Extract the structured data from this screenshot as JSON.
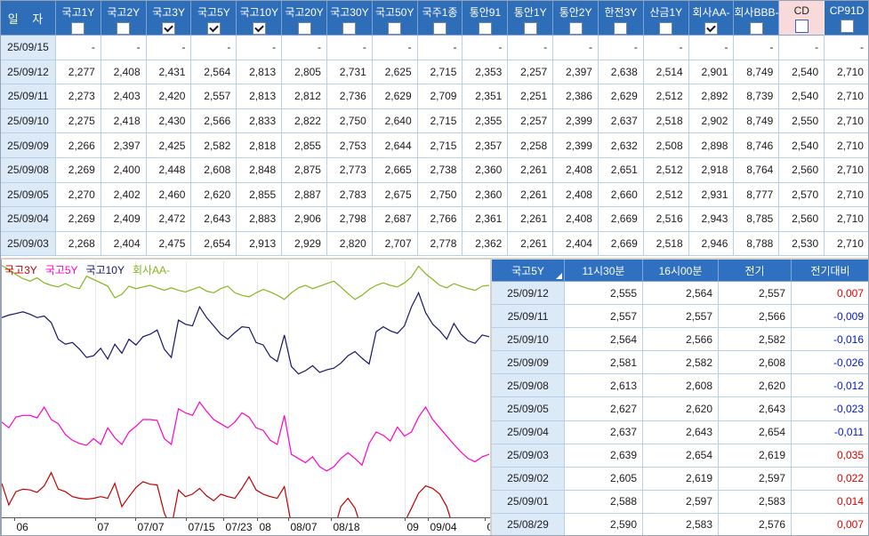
{
  "top_table": {
    "date_header": "일  자",
    "columns": [
      {
        "label": "국고1Y",
        "checked": false,
        "highlighted": false
      },
      {
        "label": "국고2Y",
        "checked": false,
        "highlighted": false
      },
      {
        "label": "국고3Y",
        "checked": true,
        "highlighted": false
      },
      {
        "label": "국고5Y",
        "checked": true,
        "highlighted": false
      },
      {
        "label": "국고10Y",
        "checked": true,
        "highlighted": false
      },
      {
        "label": "국고20Y",
        "checked": false,
        "highlighted": false
      },
      {
        "label": "국고30Y",
        "checked": false,
        "highlighted": false
      },
      {
        "label": "국고50Y",
        "checked": false,
        "highlighted": false
      },
      {
        "label": "국주1종",
        "checked": false,
        "highlighted": false
      },
      {
        "label": "통안91",
        "checked": false,
        "highlighted": false
      },
      {
        "label": "통안1Y",
        "checked": false,
        "highlighted": false
      },
      {
        "label": "통안2Y",
        "checked": false,
        "highlighted": false
      },
      {
        "label": "한전3Y",
        "checked": false,
        "highlighted": false
      },
      {
        "label": "산금1Y",
        "checked": false,
        "highlighted": false
      },
      {
        "label": "회사AA-",
        "checked": true,
        "highlighted": false
      },
      {
        "label": "회사BBB-",
        "checked": false,
        "highlighted": false
      },
      {
        "label": "CD",
        "checked": false,
        "highlighted": true
      },
      {
        "label": "CP91D",
        "checked": false,
        "highlighted": false
      }
    ],
    "rows": [
      {
        "date": "25/09/15",
        "values": [
          "-",
          "-",
          "-",
          "-",
          "-",
          "-",
          "-",
          "-",
          "-",
          "-",
          "-",
          "-",
          "-",
          "-",
          "-",
          "-",
          "-",
          "-"
        ]
      },
      {
        "date": "25/09/12",
        "values": [
          "2,277",
          "2,408",
          "2,431",
          "2,564",
          "2,813",
          "2,805",
          "2,731",
          "2,625",
          "2,715",
          "2,353",
          "2,257",
          "2,397",
          "2,638",
          "2,514",
          "2,901",
          "8,749",
          "2,540",
          "2,710"
        ]
      },
      {
        "date": "25/09/11",
        "values": [
          "2,273",
          "2,403",
          "2,420",
          "2,557",
          "2,813",
          "2,812",
          "2,736",
          "2,629",
          "2,709",
          "2,351",
          "2,251",
          "2,386",
          "2,629",
          "2,512",
          "2,892",
          "8,739",
          "2,540",
          "2,710"
        ]
      },
      {
        "date": "25/09/10",
        "values": [
          "2,275",
          "2,418",
          "2,430",
          "2,566",
          "2,833",
          "2,822",
          "2,750",
          "2,640",
          "2,715",
          "2,355",
          "2,257",
          "2,399",
          "2,637",
          "2,518",
          "2,902",
          "8,749",
          "2,550",
          "2,710"
        ]
      },
      {
        "date": "25/09/09",
        "values": [
          "2,266",
          "2,397",
          "2,425",
          "2,582",
          "2,818",
          "2,855",
          "2,753",
          "2,644",
          "2,715",
          "2,357",
          "2,258",
          "2,399",
          "2,632",
          "2,508",
          "2,898",
          "8,746",
          "2,540",
          "2,710"
        ]
      },
      {
        "date": "25/09/08",
        "values": [
          "2,269",
          "2,400",
          "2,448",
          "2,608",
          "2,848",
          "2,875",
          "2,773",
          "2,665",
          "2,738",
          "2,360",
          "2,261",
          "2,408",
          "2,651",
          "2,512",
          "2,918",
          "8,764",
          "2,560",
          "2,710"
        ]
      },
      {
        "date": "25/09/05",
        "values": [
          "2,270",
          "2,402",
          "2,460",
          "2,620",
          "2,855",
          "2,887",
          "2,783",
          "2,675",
          "2,750",
          "2,360",
          "2,261",
          "2,408",
          "2,660",
          "2,512",
          "2,931",
          "8,777",
          "2,570",
          "2,710"
        ]
      },
      {
        "date": "25/09/04",
        "values": [
          "2,269",
          "2,409",
          "2,472",
          "2,643",
          "2,883",
          "2,906",
          "2,798",
          "2,687",
          "2,766",
          "2,361",
          "2,261",
          "2,408",
          "2,669",
          "2,516",
          "2,943",
          "8,785",
          "2,560",
          "2,710"
        ]
      },
      {
        "date": "25/09/03",
        "values": [
          "2,268",
          "2,404",
          "2,475",
          "2,654",
          "2,913",
          "2,929",
          "2,820",
          "2,707",
          "2,778",
          "2,362",
          "2,261",
          "2,404",
          "2,669",
          "2,518",
          "2,946",
          "8,788",
          "2,530",
          "2,710"
        ]
      }
    ]
  },
  "chart": {
    "chart_data": {
      "type": "line",
      "legend_position": "top-left",
      "x_ticks": [
        {
          "label": "06",
          "f": 0.026
        },
        {
          "label": "07",
          "f": 0.192
        },
        {
          "label": "07/07",
          "f": 0.274
        },
        {
          "label": "07/15",
          "f": 0.378
        },
        {
          "label": "07/23",
          "f": 0.454
        },
        {
          "label": "08",
          "f": 0.524
        },
        {
          "label": "08/07",
          "f": 0.588
        },
        {
          "label": "08/18",
          "f": 0.675
        },
        {
          "label": "09",
          "f": 0.827
        },
        {
          "label": "09/04",
          "f": 0.874
        },
        {
          "label": "0",
          "f": 0.991
        }
      ],
      "ylim": [
        2.37,
        2.99
      ],
      "series": [
        {
          "name": "국고3Y",
          "color": "#c00000",
          "values": [
            2.452,
            2.4,
            2.432,
            2.438,
            2.436,
            2.43,
            2.446,
            2.478,
            2.438,
            2.432,
            2.42,
            2.416,
            2.414,
            2.416,
            2.42,
            2.416,
            2.452,
            2.396,
            2.42,
            2.442,
            2.456,
            2.45,
            2.448,
            2.38,
            2.345,
            2.436,
            2.42,
            2.426,
            2.44,
            2.422,
            2.41,
            2.426,
            2.42,
            2.416,
            2.44,
            2.468,
            2.436,
            2.426,
            2.42,
            2.416,
            2.444,
            2.352,
            2.33,
            2.332,
            2.336,
            2.33,
            2.332,
            2.336,
            2.396,
            2.416,
            2.392,
            2.34,
            2.33,
            2.332,
            2.33,
            2.334,
            2.33,
            2.358,
            2.392,
            2.428,
            2.446,
            2.44,
            2.426,
            2.396,
            2.34,
            2.33,
            2.332,
            2.33,
            2.332,
            2.33
          ]
        },
        {
          "name": "국고5Y",
          "color": "#ff00cc",
          "values": [
            2.6,
            2.586,
            2.612,
            2.616,
            2.616,
            2.61,
            2.636,
            2.606,
            2.596,
            2.57,
            2.556,
            2.548,
            2.544,
            2.56,
            2.546,
            2.586,
            2.562,
            2.546,
            2.576,
            2.59,
            2.606,
            2.606,
            2.604,
            2.56,
            2.546,
            2.632,
            2.622,
            2.616,
            2.648,
            2.626,
            2.606,
            2.596,
            2.586,
            2.6,
            2.622,
            2.612,
            2.586,
            2.58,
            2.556,
            2.546,
            2.616,
            2.522,
            2.512,
            2.502,
            2.516,
            2.492,
            2.482,
            2.492,
            2.512,
            2.526,
            2.512,
            2.496,
            2.548,
            2.576,
            2.568,
            2.554,
            2.588,
            2.566,
            2.576,
            2.612,
            2.636,
            2.606,
            2.586,
            2.566,
            2.546,
            2.528,
            2.512,
            2.504,
            2.516,
            2.522
          ]
        },
        {
          "name": "국고10Y",
          "color": "#16166b",
          "values": [
            2.852,
            2.858,
            2.862,
            2.866,
            2.86,
            2.852,
            2.856,
            2.84,
            2.8,
            2.788,
            2.792,
            2.776,
            2.756,
            2.76,
            2.778,
            2.752,
            2.788,
            2.766,
            2.8,
            2.786,
            2.806,
            2.812,
            2.822,
            2.776,
            2.756,
            2.846,
            2.836,
            2.832,
            2.878,
            2.852,
            2.832,
            2.812,
            2.8,
            2.816,
            2.83,
            2.828,
            2.792,
            2.786,
            2.758,
            2.746,
            2.81,
            2.734,
            2.716,
            2.724,
            2.736,
            2.72,
            2.726,
            2.73,
            2.742,
            2.76,
            2.77,
            2.754,
            2.74,
            2.818,
            2.83,
            2.82,
            2.814,
            2.832,
            2.878,
            2.912,
            2.864,
            2.836,
            2.82,
            2.8,
            2.838,
            2.812,
            2.796,
            2.79,
            2.81,
            2.806
          ]
        },
        {
          "name": "회사AA-",
          "color": "#84b71f",
          "values": [
            2.978,
            2.968,
            2.956,
            2.946,
            2.94,
            2.948,
            2.936,
            2.93,
            2.926,
            2.934,
            2.926,
            2.922,
            2.952,
            2.944,
            2.936,
            2.928,
            2.9,
            2.908,
            2.928,
            2.922,
            2.926,
            2.93,
            2.924,
            2.918,
            2.924,
            2.918,
            2.914,
            2.92,
            2.926,
            2.916,
            2.912,
            2.922,
            2.928,
            2.912,
            2.906,
            2.902,
            2.912,
            2.92,
            2.914,
            2.906,
            2.896,
            2.912,
            2.924,
            2.93,
            2.922,
            2.928,
            2.934,
            2.94,
            2.926,
            2.91,
            2.896,
            2.906,
            2.92,
            2.93,
            2.936,
            2.93,
            2.926,
            2.936,
            2.95,
            2.976,
            2.958,
            2.944,
            2.93,
            2.924,
            2.934,
            2.928,
            2.922,
            2.918,
            2.928,
            2.93
          ]
        }
      ],
      "legend": [
        {
          "label": "국고3Y",
          "color": "#c00000"
        },
        {
          "label": "국고5Y",
          "color": "#ff00cc"
        },
        {
          "label": "국고10Y",
          "color": "#16166b"
        },
        {
          "label": "회사AA-",
          "color": "#84b71f"
        }
      ]
    }
  },
  "quote_table": {
    "selected_series": "국고5Y",
    "columns": [
      "11시30분",
      "16시00분",
      "전기",
      "전기대비"
    ],
    "rows": [
      {
        "date": "25/09/12",
        "t1130": "2,555",
        "t1600": "2,564",
        "prev": "2,557",
        "change": "0,007",
        "direction": "up"
      },
      {
        "date": "25/09/11",
        "t1130": "2,557",
        "t1600": "2,557",
        "prev": "2,566",
        "change": "-0,009",
        "direction": "down"
      },
      {
        "date": "25/09/10",
        "t1130": "2,564",
        "t1600": "2,566",
        "prev": "2,582",
        "change": "-0,016",
        "direction": "down"
      },
      {
        "date": "25/09/09",
        "t1130": "2,581",
        "t1600": "2,582",
        "prev": "2,608",
        "change": "-0,026",
        "direction": "down"
      },
      {
        "date": "25/09/08",
        "t1130": "2,613",
        "t1600": "2,608",
        "prev": "2,620",
        "change": "-0,012",
        "direction": "down"
      },
      {
        "date": "25/09/05",
        "t1130": "2,627",
        "t1600": "2,620",
        "prev": "2,643",
        "change": "-0,023",
        "direction": "down"
      },
      {
        "date": "25/09/04",
        "t1130": "2,637",
        "t1600": "2,643",
        "prev": "2,654",
        "change": "-0,011",
        "direction": "down"
      },
      {
        "date": "25/09/03",
        "t1130": "2,639",
        "t1600": "2,654",
        "prev": "2,619",
        "change": "0,035",
        "direction": "up"
      },
      {
        "date": "25/09/02",
        "t1130": "2,605",
        "t1600": "2,619",
        "prev": "2,597",
        "change": "0,022",
        "direction": "up"
      },
      {
        "date": "25/09/01",
        "t1130": "2,588",
        "t1600": "2,597",
        "prev": "2,583",
        "change": "0,014",
        "direction": "up"
      },
      {
        "date": "25/08/29",
        "t1130": "2,590",
        "t1600": "2,583",
        "prev": "2,576",
        "change": "0,007",
        "direction": "up"
      }
    ]
  },
  "colors": {
    "header_bg": "#2e6db8",
    "quote_header_bg": "#2f70c0",
    "highlight_header_bg": "#f9dada",
    "date_cell_bg": "#dce9f7",
    "grid_border": "#b9cfe8",
    "up": "#dd0000",
    "down": "#0018cc",
    "window_bg": "#d6d2ca"
  }
}
